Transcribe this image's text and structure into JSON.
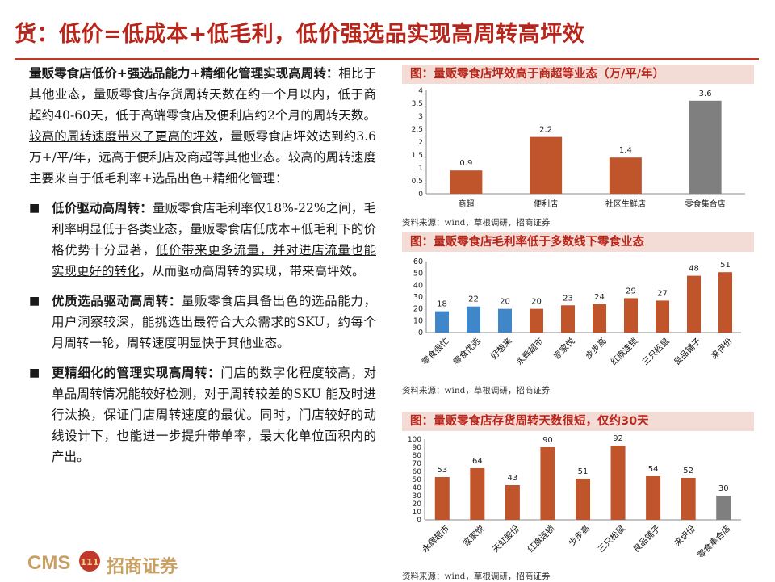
{
  "header": {
    "title": "货：低价=低成本+低毛利，低价强选品实现高周转高坪效"
  },
  "body": {
    "para1_bold": "量贩零食店低价+强选品能力+精细化管理实现高周转：",
    "para1_a": "相比于其他业态，量贩零食店存货周转天数在约一个月以内，低于商超约40-60天，低于高端零食店及便利店约2个月的周转天数。",
    "para1_u": "较高的周转速度带来了更高的坪效",
    "para1_b": "，量贩零食店坪效达到约3.6万+/平/年，远高于便利店及商超等其他业态。较高的周转速度主要来自于低毛利率+选品出色+精细化管理：",
    "bullets": [
      {
        "bold": "低价驱动高周转：",
        "a": "量贩零食店毛利率仅18%-22%之间，毛利率明显低于各类业态，量贩零食店低成本+低毛利下的价格优势十分显著，",
        "u": "低价带来更多流量，并对进店流量也能实现更好的转化",
        "b": "，从而驱动高周转的实现，带来高坪效。"
      },
      {
        "bold": "优质选品驱动高周转：",
        "a": "量贩零食店具备出色的选品能力，用户洞察较深，能挑选出最符合大众需求的SKU，约每个月周转一轮，周转速度明显快于其他业态。",
        "u": "",
        "b": ""
      },
      {
        "bold": "更精细化的管理实现高周转：",
        "a": "门店的数字化程度较高，对单品周转情况能较好检测，对于周转较差的SKU 能及时进行汰换，保证门店周转速度的最优。同时，门店较好的动线设计下，也能进一步提升带单率，最大化单位面积内的产出。",
        "u": "",
        "b": ""
      }
    ],
    "bullet_symbol": "■"
  },
  "charts_meta": [
    {
      "head": "图：量贩零食店坪效高于商超等业态（万/平/年）",
      "source": "资料来源：wind，草根调研，招商证券"
    },
    {
      "head": "图：量贩零食店毛利率低于多数线下零食业态",
      "source": "资料来源：wind，草根调研，招商证券"
    },
    {
      "head": "图：量贩零食店存货周转天数很短，仅约30天",
      "source": "资料来源：wind，草根调研，招商证券"
    }
  ],
  "footer": {
    "logo_text": "CMS",
    "logo_cn": "招商证券",
    "logo_mark": "111"
  },
  "colors": {
    "red": "#b8261b",
    "bar_orange": "#c0552b",
    "bar_gray": "#7f7f7f",
    "bar_blue": "#3f87c8"
  },
  "chart_data": [
    {
      "type": "bar",
      "title": "量贩零食店坪效高于商超等业态（万/平/年）",
      "categories": [
        "商超",
        "便利店",
        "社区生鲜店",
        "零食集合店"
      ],
      "values": [
        0.9,
        2.2,
        1.4,
        3.6
      ],
      "labels": [
        "0.9",
        "2.2",
        "1.4",
        "3.6"
      ],
      "bar_colors": [
        "orange",
        "orange",
        "orange",
        "gray"
      ],
      "ylim": [
        0,
        4
      ],
      "yticks": [
        "0",
        "0.5",
        "1",
        "1.5",
        "2",
        "2.5",
        "3",
        "3.5",
        "4"
      ],
      "rotate_labels": false
    },
    {
      "type": "bar",
      "title": "量贩零食店毛利率低于多数线下零食业态",
      "categories": [
        "零食很忙",
        "零食优选",
        "好想来",
        "永辉超市",
        "家家悦",
        "步步高",
        "红旗连锁",
        "三只松鼠",
        "良品铺子",
        "来伊份"
      ],
      "values": [
        18,
        22,
        20,
        20,
        23,
        24,
        29,
        27,
        48,
        51
      ],
      "labels": [
        "18",
        "22",
        "20",
        "20",
        "23",
        "24",
        "29",
        "27",
        "48",
        "51"
      ],
      "bar_colors": [
        "blue",
        "blue",
        "blue",
        "orange",
        "orange",
        "orange",
        "orange",
        "orange",
        "orange",
        "orange"
      ],
      "ylim": [
        0,
        60
      ],
      "yticks": [
        "0",
        "10",
        "20",
        "30",
        "40",
        "50",
        "60"
      ],
      "rotate_labels": true
    },
    {
      "type": "bar",
      "title": "量贩零食店存货周转天数很短，仅约30天",
      "categories": [
        "永辉超市",
        "家家悦",
        "天虹股份",
        "红旗连锁",
        "步步高",
        "三只松鼠",
        "良品铺子",
        "来伊份",
        "零食集合店"
      ],
      "values": [
        53,
        64,
        43,
        90,
        51,
        92,
        54,
        52,
        30
      ],
      "labels": [
        "53",
        "64",
        "43",
        "90",
        "51",
        "92",
        "54",
        "52",
        "30"
      ],
      "bar_colors": [
        "orange",
        "orange",
        "orange",
        "orange",
        "orange",
        "orange",
        "orange",
        "orange",
        "gray"
      ],
      "ylim": [
        0,
        100
      ],
      "yticks": [
        "0",
        "10",
        "20",
        "30",
        "40",
        "50",
        "60",
        "70",
        "80",
        "90",
        "100"
      ],
      "rotate_labels": true
    }
  ]
}
